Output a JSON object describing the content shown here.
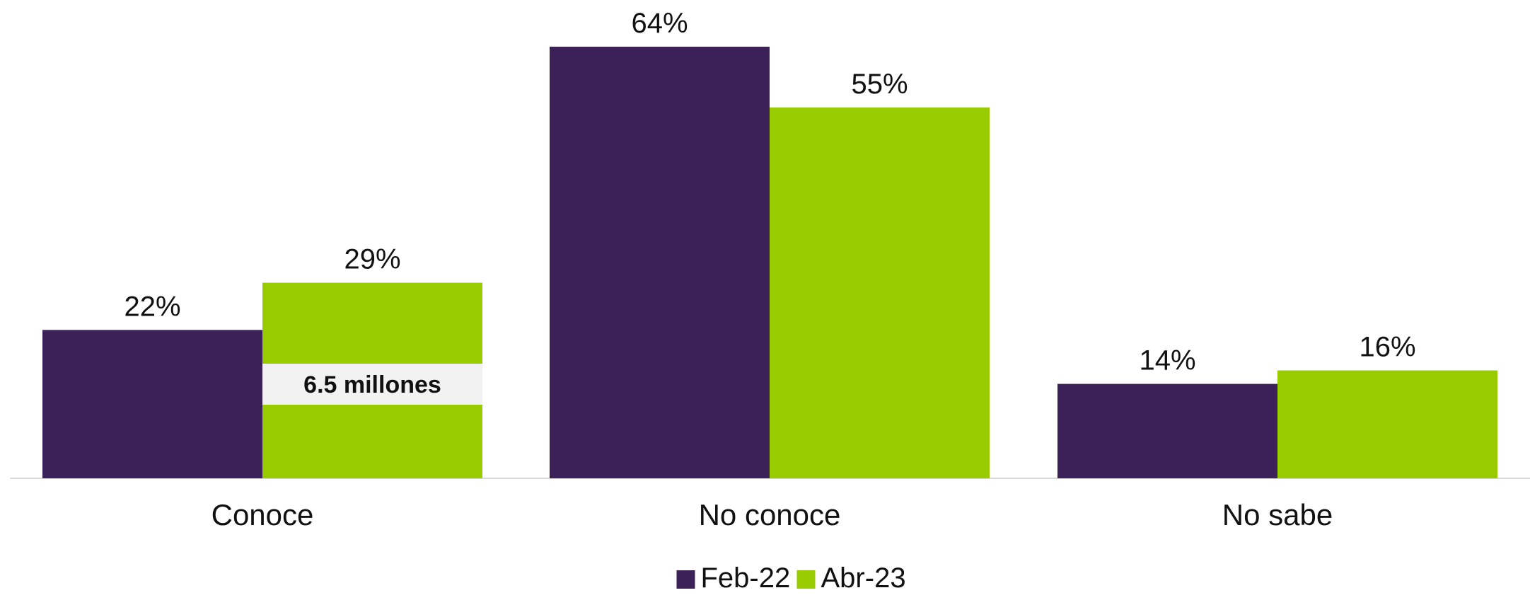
{
  "chart_data": {
    "type": "bar",
    "categories": [
      "Conoce",
      "No conoce",
      "No sabe"
    ],
    "series": [
      {
        "name": "Feb-22",
        "values": [
          22,
          64,
          14
        ],
        "color": "#3c2159"
      },
      {
        "name": "Abr-23",
        "values": [
          29,
          55,
          16
        ],
        "color": "#99cc00"
      }
    ],
    "value_suffix": "%",
    "ylim": [
      0,
      64
    ],
    "grid": false,
    "legend_position": "bottom-center",
    "title": "",
    "xlabel": "",
    "ylabel": "",
    "annotations": [
      {
        "text": "6.5 millones",
        "category": "Conoce",
        "series": "Abr-23",
        "background": "#f2f2f2"
      }
    ],
    "baseline_color": "#d9d9d9"
  }
}
